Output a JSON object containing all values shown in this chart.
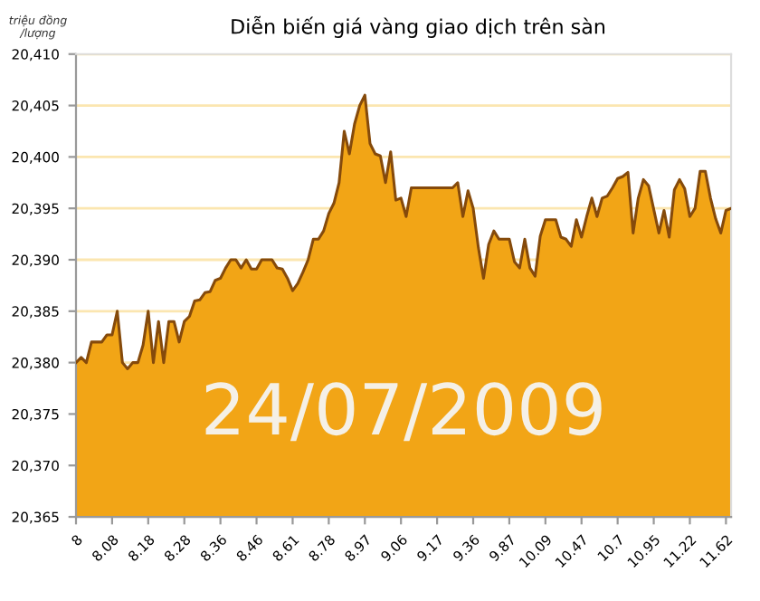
{
  "chart_data": {
    "type": "area",
    "title": "Diễn biến giá vàng giao dịch trên sàn",
    "ylabel": "triệu đồng\n/lượng",
    "annotations": [
      "24/07/2009"
    ],
    "categories": [
      "8",
      null,
      null,
      null,
      null,
      null,
      null,
      "8.08",
      null,
      null,
      null,
      null,
      null,
      null,
      "8.18",
      null,
      null,
      null,
      null,
      null,
      null,
      "8.28",
      null,
      null,
      null,
      null,
      null,
      null,
      "8.36",
      null,
      null,
      null,
      null,
      null,
      null,
      "8.46",
      null,
      null,
      null,
      null,
      null,
      null,
      "8.61",
      null,
      null,
      null,
      null,
      null,
      null,
      "8.78",
      null,
      null,
      null,
      null,
      null,
      null,
      "8.97",
      null,
      null,
      null,
      null,
      null,
      null,
      "9.06",
      null,
      null,
      null,
      null,
      null,
      null,
      "9.17",
      null,
      null,
      null,
      null,
      null,
      null,
      "9.36",
      null,
      null,
      null,
      null,
      null,
      null,
      "9.87",
      null,
      null,
      null,
      null,
      null,
      null,
      "10.09",
      null,
      null,
      null,
      null,
      null,
      null,
      "10.47",
      null,
      null,
      null,
      null,
      null,
      null,
      "10.7",
      null,
      null,
      null,
      null,
      null,
      null,
      "10.95",
      null,
      null,
      null,
      null,
      null,
      null,
      "11.22",
      null,
      null,
      null,
      null,
      null,
      null,
      "11.62",
      null
    ],
    "series": [
      {
        "color": "#f2a516",
        "values": [
          20380.0,
          20380.5,
          20380.0,
          20382.0,
          20382.0,
          20382.0,
          20382.7,
          20382.7,
          20385.0,
          20380.0,
          20379.4,
          20380.0,
          20380.0,
          20381.7,
          20385.0,
          20380.0,
          20384.0,
          20380.0,
          20384.0,
          20384.0,
          20382.0,
          20384.0,
          20384.5,
          20386.0,
          20386.1,
          20386.8,
          20386.9,
          20388.0,
          20388.2,
          20389.2,
          20390.0,
          20390.0,
          20389.2,
          20390.0,
          20389.1,
          20389.1,
          20390.0,
          20390.0,
          20390.0,
          20389.2,
          20389.1,
          20388.2,
          20387.0,
          20387.7,
          20388.8,
          20390.0,
          20392.0,
          20392.0,
          20392.8,
          20394.5,
          20395.5,
          20397.5,
          20402.5,
          20400.3,
          20403.2,
          20405.0,
          20406.0,
          20401.3,
          20400.3,
          20400.1,
          20397.5,
          20400.5,
          20395.8,
          20396.0,
          20394.2,
          20397.0,
          20397.0,
          20397.0,
          20397.0,
          20397.0,
          20397.0,
          20397.0,
          20397.0,
          20397.0,
          20397.5,
          20394.2,
          20396.7,
          20395.0,
          20391.2,
          20388.2,
          20391.5,
          20392.8,
          20392.0,
          20392.0,
          20392.0,
          20389.8,
          20389.2,
          20392.0,
          20389.2,
          20388.4,
          20392.3,
          20393.9,
          20393.9,
          20393.9,
          20392.2,
          20392.0,
          20391.3,
          20393.9,
          20392.2,
          20394.2,
          20396.0,
          20394.2,
          20396.0,
          20396.2,
          20397.0,
          20397.9,
          20398.1,
          20398.5,
          20392.6,
          20396.0,
          20397.8,
          20397.2,
          20394.9,
          20392.6,
          20394.8,
          20392.2,
          20396.8,
          20397.8,
          20396.9,
          20394.2,
          20395.0,
          20398.6,
          20398.6,
          20396.0,
          20394.0,
          20392.6,
          20394.8,
          20395.0
        ]
      }
    ],
    "ylim": [
      20365,
      20410
    ],
    "yticks": [
      {
        "value": 20365,
        "label": "20,365"
      },
      {
        "value": 20370,
        "label": "20,370"
      },
      {
        "value": 20375,
        "label": "20,375"
      },
      {
        "value": 20380,
        "label": "20,380"
      },
      {
        "value": 20385,
        "label": "20,385"
      },
      {
        "value": 20390,
        "label": "20,390"
      },
      {
        "value": 20395,
        "label": "20,395"
      },
      {
        "value": 20400,
        "label": "20,400"
      },
      {
        "value": 20405,
        "label": "20,405"
      },
      {
        "value": 20410,
        "label": "20,410"
      }
    ],
    "grid": "y",
    "legend": false
  }
}
